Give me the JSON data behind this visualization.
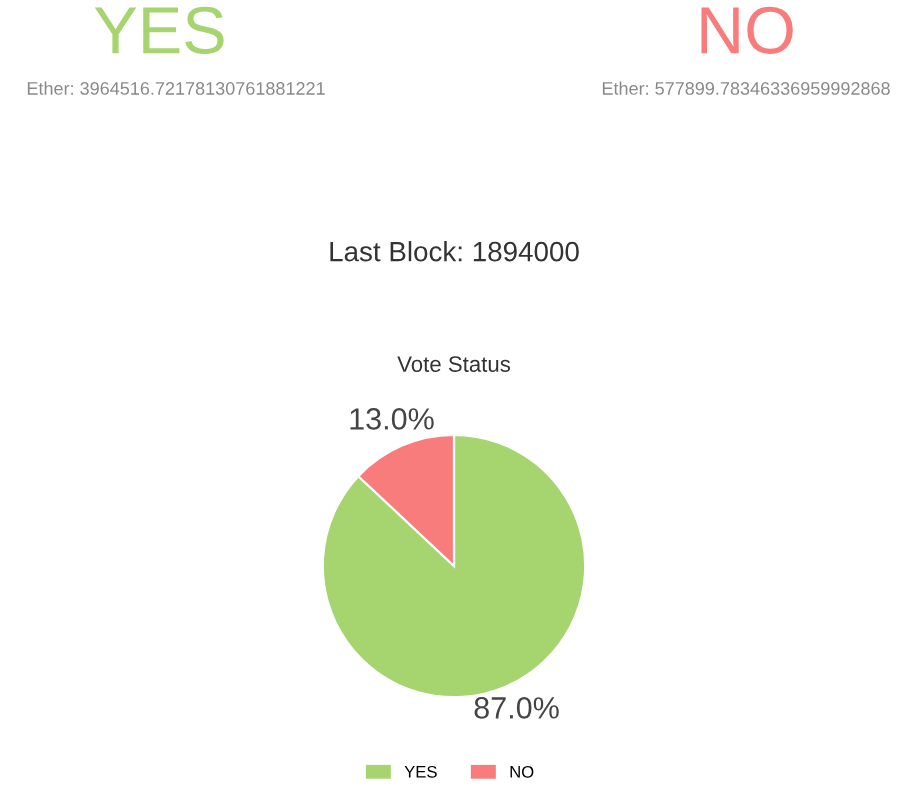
{
  "chart_data": {
    "type": "pie",
    "title": "Vote Status",
    "categories": [
      "YES",
      "NO"
    ],
    "values": [
      87.0,
      13.0
    ],
    "colors": [
      "#a6d46e",
      "#f87c7c"
    ],
    "value_labels": [
      "87.0%",
      "13.0%"
    ],
    "legend": "bottom",
    "annotations": [
      "YES",
      "Ether: 3964516.72178130761881221",
      "NO",
      "Ether: 577899.78346336959992868",
      "Last Block: 1894000"
    ]
  }
}
